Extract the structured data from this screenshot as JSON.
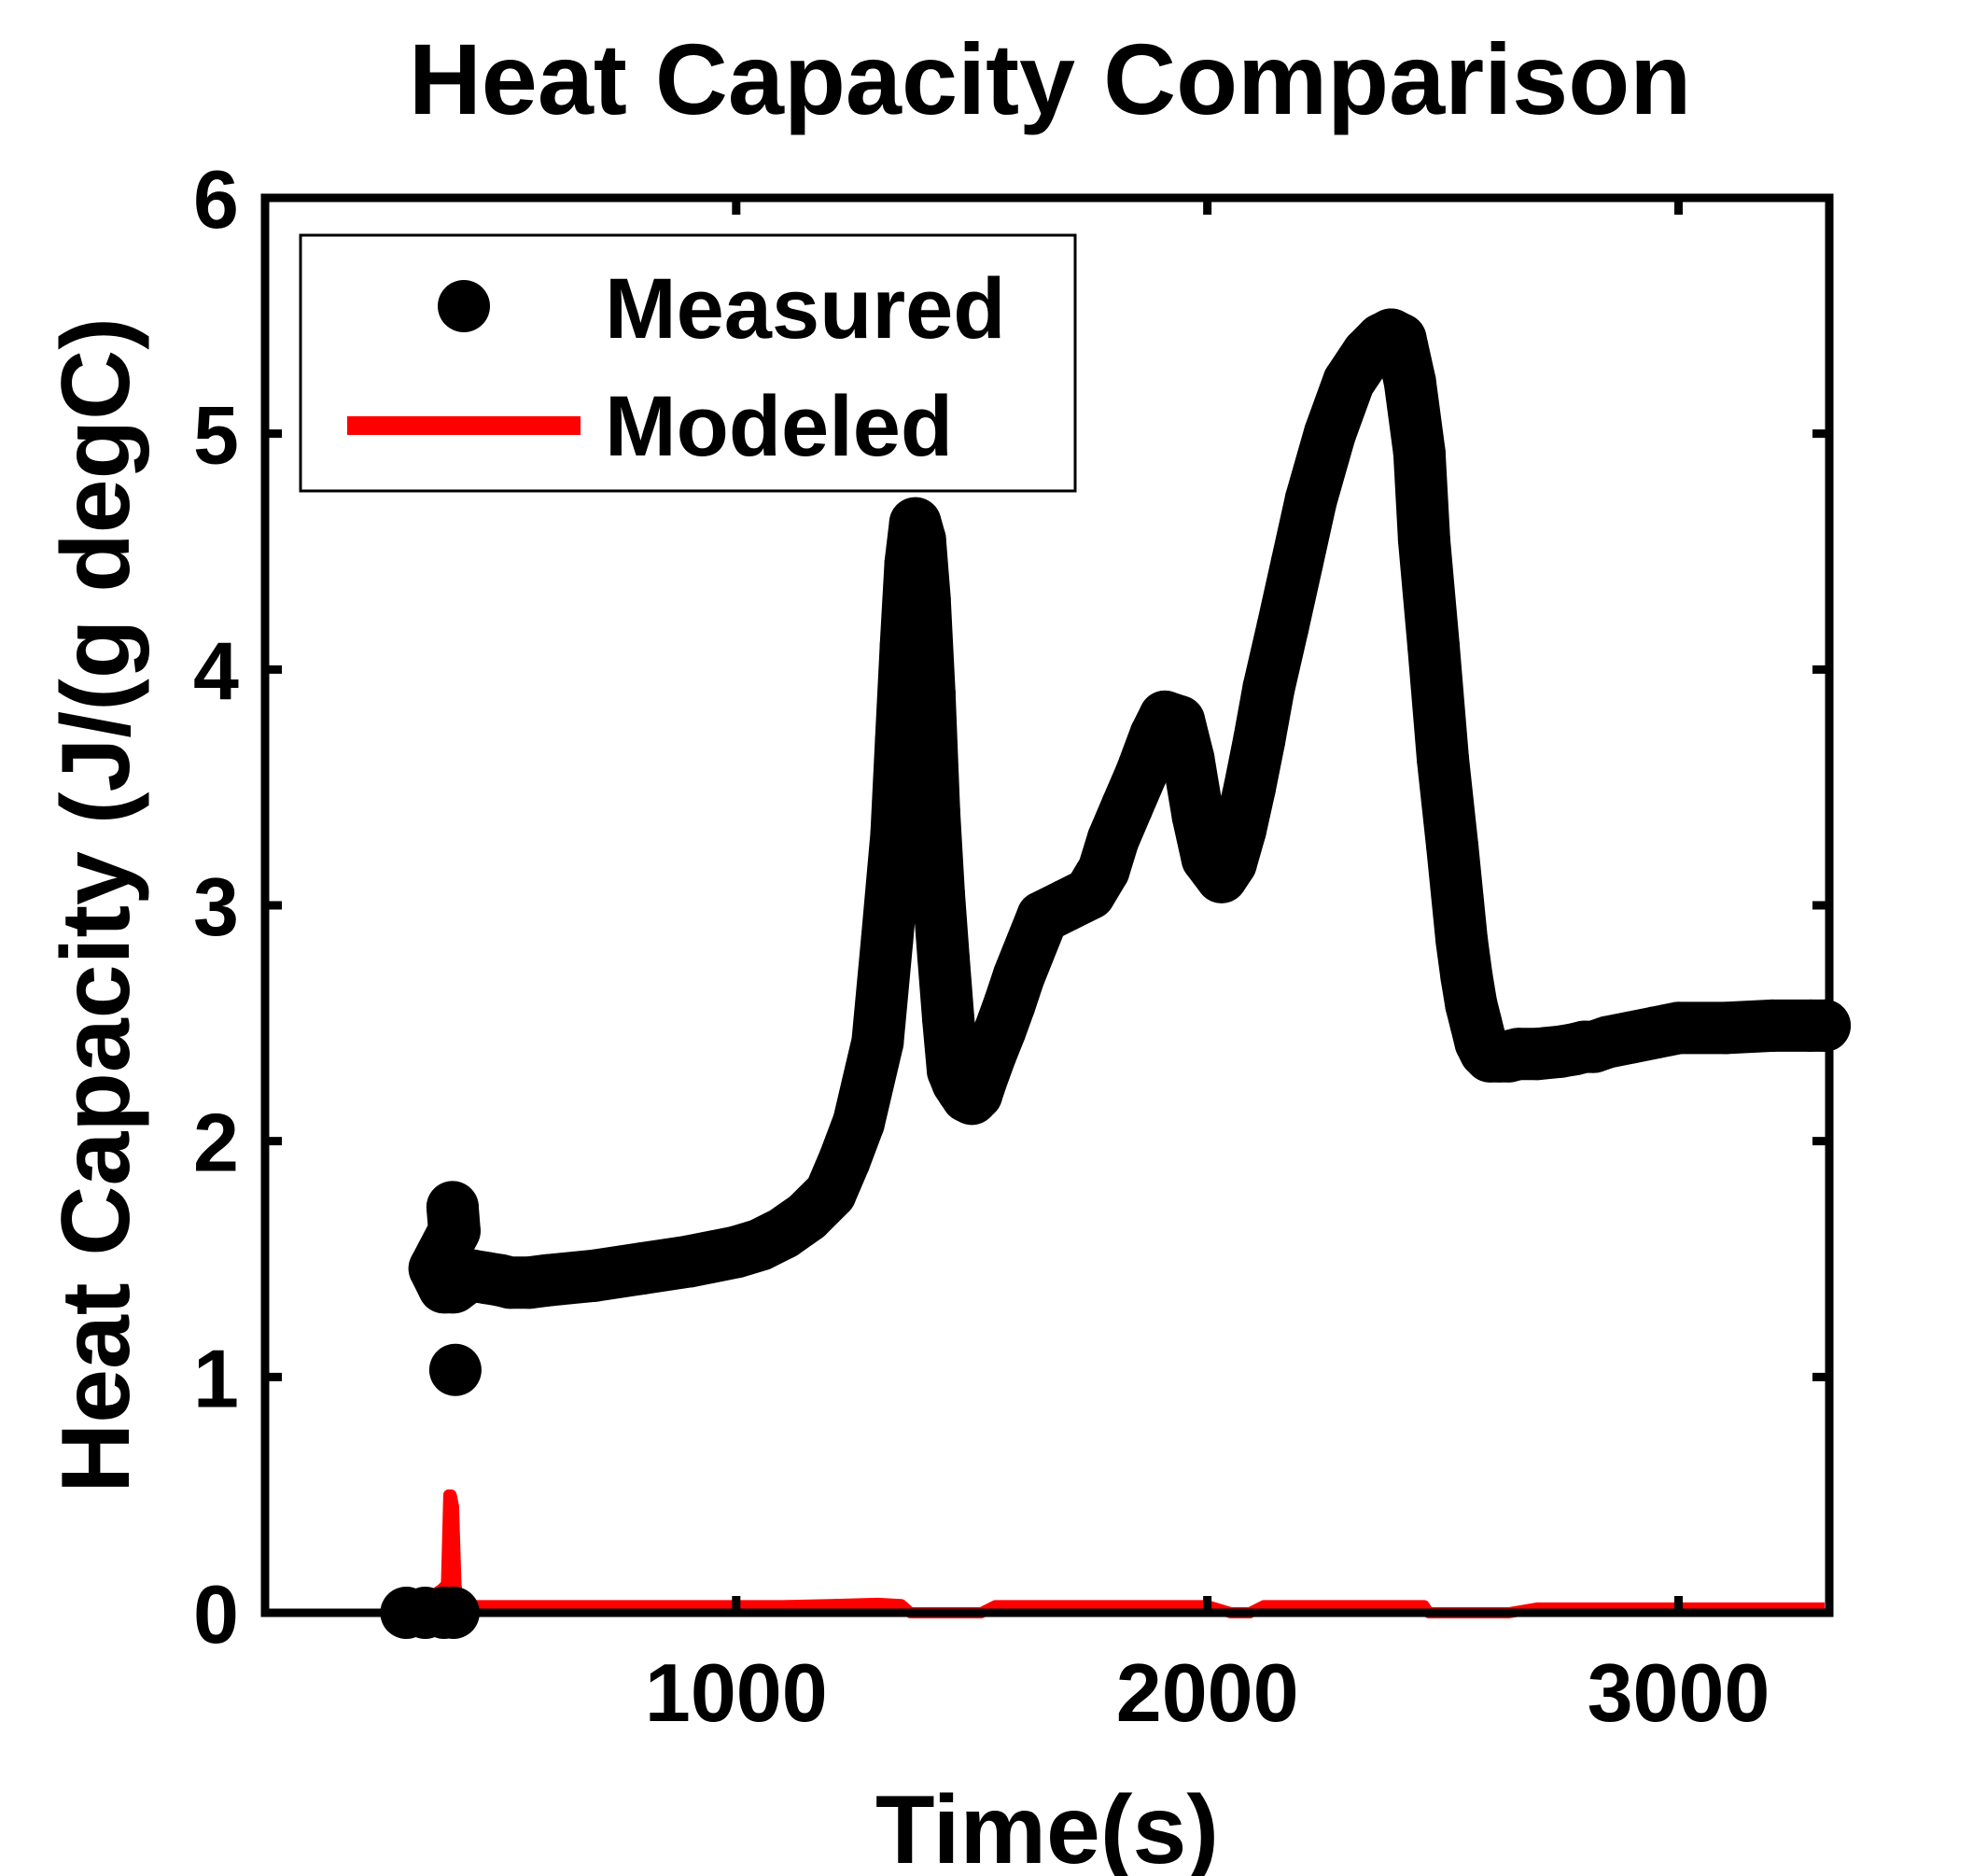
{
  "chart_data": {
    "type": "scatter",
    "title": "Heat Capacity Comparison",
    "xlabel": "Time(s)",
    "ylabel": "Heat Capacity (J/(g degC)",
    "xlim": [
      0,
      3320
    ],
    "ylim": [
      0,
      6
    ],
    "xticks": [
      1000,
      2000,
      3000
    ],
    "yticks": [
      0,
      1,
      2,
      3,
      4,
      5,
      6
    ],
    "xtick_labels": [
      "1000",
      "2000",
      "3000"
    ],
    "ytick_labels": [
      "0",
      "1",
      "2",
      "3",
      "4",
      "5",
      "6"
    ],
    "grid": false,
    "legend_position": "top-left",
    "series": [
      {
        "name": "Measured",
        "style": "markers",
        "color": "#000000",
        "x": [
          300,
          340,
          380,
          400,
          404,
          398,
          402,
          360,
          380,
          400,
          420,
          440,
          470,
          500,
          520,
          560,
          600,
          700,
          800,
          900,
          1000,
          1050,
          1100,
          1150,
          1200,
          1230,
          1260,
          1300,
          1320,
          1340,
          1350,
          1360,
          1370,
          1380,
          1390,
          1400,
          1410,
          1420,
          1430,
          1440,
          1450,
          1460,
          1470,
          1480,
          1490,
          1500,
          1510,
          1520,
          1540,
          1560,
          1580,
          1600,
          1650,
          1700,
          1750,
          1780,
          1800,
          1830,
          1860,
          1890,
          1910,
          1940,
          1960,
          1980,
          2000,
          2030,
          2050,
          2070,
          2090,
          2110,
          2130,
          2160,
          2190,
          2220,
          2260,
          2300,
          2340,
          2370,
          2390,
          2410,
          2430,
          2450,
          2460,
          2480,
          2500,
          2520,
          2540,
          2550,
          2560,
          2570,
          2580,
          2590,
          2600,
          2620,
          2640,
          2660,
          2700,
          2750,
          2780,
          2800,
          2820,
          2850,
          2900,
          2950,
          3000,
          3100,
          3200,
          3280,
          3310
        ],
        "y": [
          0.0,
          0.0,
          0.0,
          0.0,
          1.03,
          1.72,
          1.62,
          1.46,
          1.38,
          1.38,
          1.41,
          1.43,
          1.42,
          1.41,
          1.4,
          1.4,
          1.41,
          1.43,
          1.46,
          1.49,
          1.53,
          1.56,
          1.61,
          1.68,
          1.78,
          1.92,
          2.08,
          2.42,
          2.85,
          3.3,
          3.7,
          4.1,
          4.45,
          4.62,
          4.55,
          4.3,
          3.9,
          3.4,
          3.05,
          2.78,
          2.52,
          2.3,
          2.25,
          2.22,
          2.19,
          2.18,
          2.2,
          2.26,
          2.37,
          2.47,
          2.58,
          2.7,
          2.95,
          3.0,
          3.05,
          3.15,
          3.28,
          3.42,
          3.56,
          3.72,
          3.8,
          3.78,
          3.62,
          3.38,
          3.2,
          3.12,
          3.18,
          3.32,
          3.5,
          3.7,
          3.92,
          4.18,
          4.45,
          4.72,
          5.0,
          5.22,
          5.34,
          5.4,
          5.42,
          5.4,
          5.22,
          4.92,
          4.55,
          4.1,
          3.62,
          3.25,
          2.85,
          2.7,
          2.58,
          2.5,
          2.42,
          2.38,
          2.36,
          2.36,
          2.36,
          2.37,
          2.37,
          2.38,
          2.39,
          2.4,
          2.4,
          2.42,
          2.44,
          2.46,
          2.48,
          2.48,
          2.49,
          2.49,
          2.49
        ]
      },
      {
        "name": "Modeled",
        "style": "line",
        "color": "#ff0000",
        "x": [
          300,
          320,
          340,
          360,
          375,
          385,
          390,
          395,
          400,
          405,
          410,
          420,
          450,
          500,
          600,
          700,
          800,
          900,
          1000,
          1100,
          1200,
          1300,
          1350,
          1370,
          1390,
          1420,
          1450,
          1470,
          1500,
          1520,
          1550,
          1560,
          1580,
          1600,
          1650,
          1700,
          1800,
          1900,
          2000,
          2050,
          2070,
          2090,
          2120,
          2150,
          2200,
          2300,
          2400,
          2460,
          2470,
          2500,
          2550,
          2600,
          2620,
          2640,
          2700,
          2800,
          2900,
          3000,
          3100,
          3200,
          3300,
          3310
        ],
        "y": [
          0.0,
          0.02,
          0.05,
          0.08,
          0.1,
          0.12,
          0.5,
          0.5,
          0.45,
          0.12,
          0.04,
          0.03,
          0.03,
          0.03,
          0.03,
          0.03,
          0.03,
          0.03,
          0.03,
          0.03,
          0.035,
          0.04,
          0.035,
          0.0,
          0.0,
          0.0,
          0.0,
          0.0,
          0.0,
          0.0,
          0.03,
          0.03,
          0.03,
          0.03,
          0.03,
          0.03,
          0.03,
          0.03,
          0.03,
          0.0,
          0.0,
          0.0,
          0.03,
          0.03,
          0.03,
          0.03,
          0.03,
          0.03,
          0.0,
          0.0,
          0.0,
          0.0,
          0.0,
          0.0,
          0.02,
          0.02,
          0.02,
          0.02,
          0.02,
          0.02,
          0.02,
          0.02
        ]
      }
    ],
    "legend_entries": [
      "Measured",
      "Modeled"
    ]
  }
}
